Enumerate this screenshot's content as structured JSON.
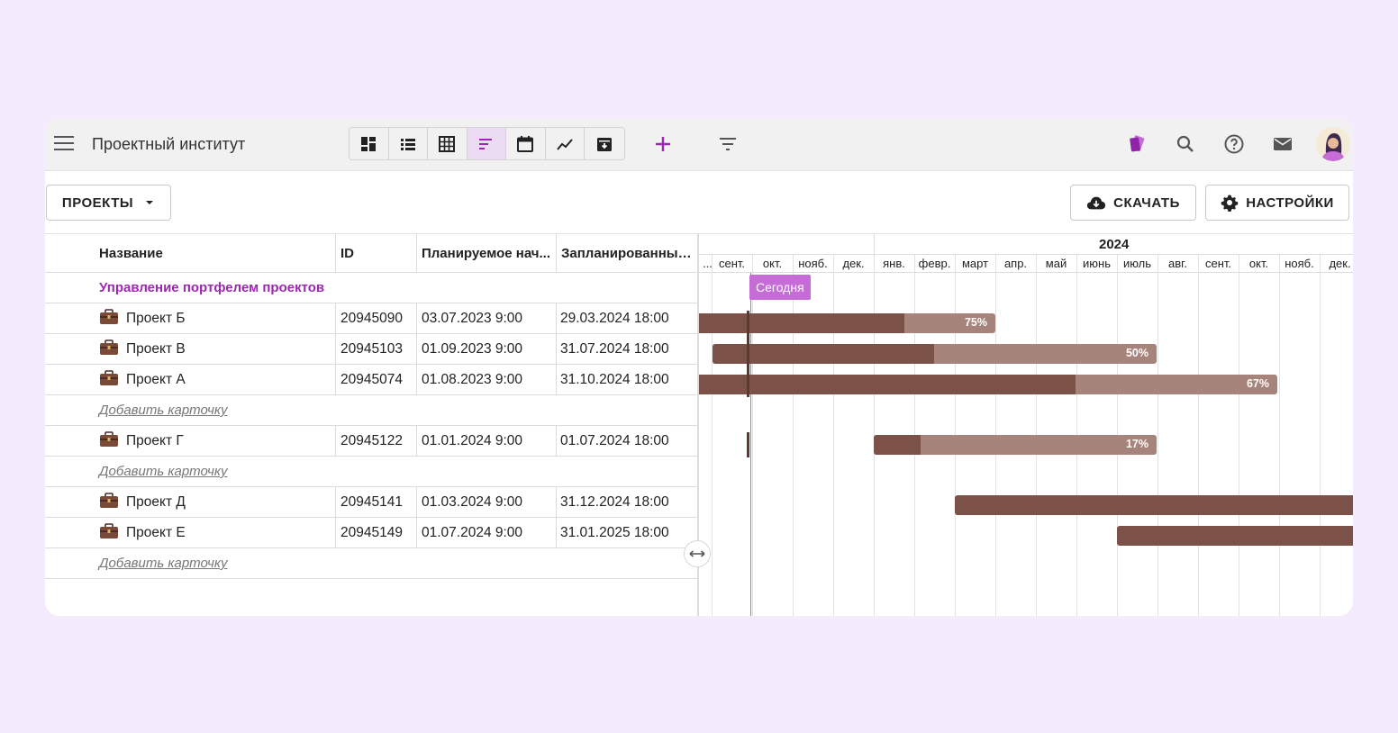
{
  "header": {
    "title": "Проектный институт",
    "views": [
      {
        "name": "dashboard-view-icon",
        "active": false
      },
      {
        "name": "list-view-icon",
        "active": false
      },
      {
        "name": "table-view-icon",
        "active": false
      },
      {
        "name": "gantt-view-icon",
        "active": true
      },
      {
        "name": "calendar-view-icon",
        "active": false
      },
      {
        "name": "chart-view-icon",
        "active": false
      },
      {
        "name": "archive-view-icon",
        "active": false
      }
    ]
  },
  "toolbar": {
    "projects_label": "ПРОЕКТЫ",
    "download_label": "СКАЧАТЬ",
    "settings_label": "НАСТРОЙКИ"
  },
  "table": {
    "columns": [
      "Название",
      "ID",
      "Планируемое нач...",
      "Запланированный ..."
    ],
    "group": "Управление портфелем проектов",
    "add_card": "Добавить карточку",
    "rows": [
      {
        "name": "Проект Б",
        "id": "20945090",
        "start": "03.07.2023 9:00",
        "end": "29.03.2024 18:00"
      },
      {
        "name": "Проект В",
        "id": "20945103",
        "start": "01.09.2023 9:00",
        "end": "31.07.2024 18:00"
      },
      {
        "name": "Проект А",
        "id": "20945074",
        "start": "01.08.2023 9:00",
        "end": "31.10.2024 18:00"
      },
      {
        "name": "Проект Г",
        "id": "20945122",
        "start": "01.01.2024 9:00",
        "end": "01.07.2024 18:00"
      },
      {
        "name": "Проект Д",
        "id": "20945141",
        "start": "01.03.2024 9:00",
        "end": "31.12.2024 18:00"
      },
      {
        "name": "Проект Е",
        "id": "20945149",
        "start": "01.07.2024 9:00",
        "end": "31.01.2025 18:00"
      }
    ]
  },
  "gantt": {
    "year_label": "2024",
    "months_before": [
      "...",
      "сент.",
      "окт.",
      "нояб.",
      "дек."
    ],
    "months_2024": [
      "янв.",
      "февр.",
      "март",
      "апр.",
      "май",
      "июнь",
      "июль",
      "авг.",
      "сент.",
      "окт.",
      "нояб.",
      "дек."
    ],
    "today_label": "Сегодня",
    "progress": [
      {
        "project": "Проект Б",
        "percent": "75%"
      },
      {
        "project": "Проект В",
        "percent": "50%"
      },
      {
        "project": "Проект А",
        "percent": "67%"
      },
      {
        "project": "Проект Г",
        "percent": "17%"
      }
    ]
  },
  "colors": {
    "accent": "#9c27b0",
    "bar_done": "#7c5248",
    "bar_remaining": "#a6837b",
    "today": "#c56cd6",
    "page_bg": "#f4ebfc"
  }
}
